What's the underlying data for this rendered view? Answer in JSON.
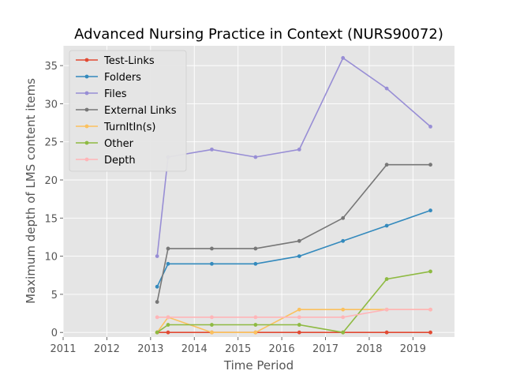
{
  "chart_data": {
    "type": "line",
    "title": "Advanced Nursing Practice in Context (NURS90072)",
    "xlabel": "Time Period",
    "ylabel": "Maximum depth of LMS content items",
    "xlim": [
      2011.0,
      2019.95
    ],
    "ylim": [
      -0.6,
      37.6
    ],
    "xticks": [
      2011,
      2012,
      2013,
      2014,
      2015,
      2016,
      2017,
      2018,
      2019
    ],
    "yticks": [
      0,
      5,
      10,
      15,
      20,
      25,
      30,
      35
    ],
    "x": [
      2013.15,
      2013.4,
      2014.4,
      2015.4,
      2016.4,
      2017.4,
      2018.4,
      2019.4
    ],
    "grid": true,
    "legend_position": "upper-left",
    "series": [
      {
        "name": "Test-Links",
        "color": "#e24a33",
        "values": [
          0,
          0,
          0,
          0,
          0,
          0,
          0,
          0
        ]
      },
      {
        "name": "Folders",
        "color": "#348abd",
        "values": [
          6,
          9,
          9,
          9,
          10,
          12,
          14,
          16
        ]
      },
      {
        "name": "Files",
        "color": "#988ed5",
        "values": [
          10,
          23,
          24,
          23,
          24,
          36,
          32,
          27
        ]
      },
      {
        "name": "External Links",
        "color": "#777777",
        "values": [
          4,
          11,
          11,
          11,
          12,
          15,
          22,
          22
        ]
      },
      {
        "name": "TurnItIn(s)",
        "color": "#fbc15e",
        "values": [
          0,
          2,
          0,
          0,
          3,
          3,
          3,
          3
        ]
      },
      {
        "name": "Other",
        "color": "#8eba42",
        "values": [
          0,
          1,
          1,
          1,
          1,
          0,
          7,
          8
        ]
      },
      {
        "name": "Depth",
        "color": "#ffb5b8",
        "values": [
          2,
          2,
          2,
          2,
          2,
          2,
          3,
          3
        ]
      }
    ]
  }
}
